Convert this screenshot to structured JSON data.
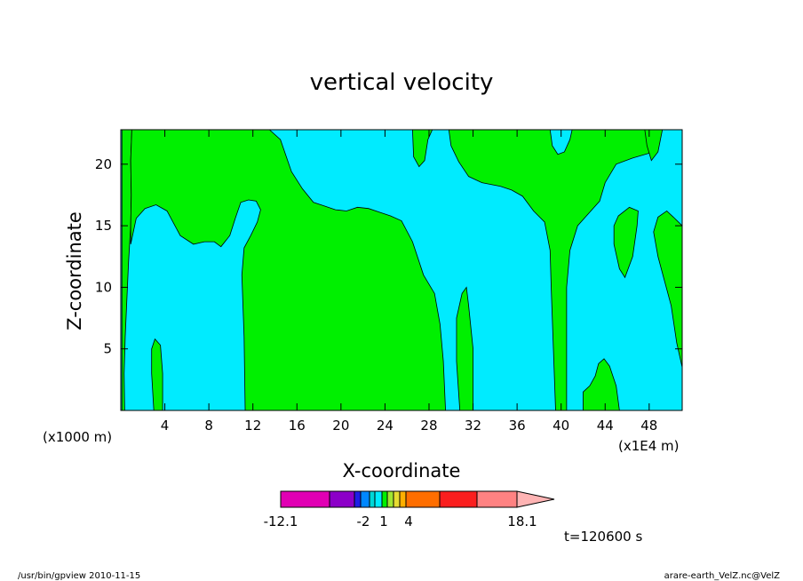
{
  "chart_data": {
    "type": "heatmap",
    "title": "vertical velocity",
    "xlabel": "X-coordinate",
    "ylabel": "Z-coordinate",
    "x_unit_left": "(x1000 m)",
    "x_unit_right": "(x1E4 m)",
    "xlim": [
      0,
      51
    ],
    "ylim": [
      0,
      22.8
    ],
    "xticks": [
      4,
      8,
      12,
      16,
      20,
      24,
      28,
      32,
      36,
      40,
      44,
      48
    ],
    "yticks": [
      5,
      10,
      15,
      20
    ],
    "background_color": "#00EBFF",
    "green_color": "#00F000",
    "regions": [
      {
        "name": "green-left-edge",
        "color": "#00F000",
        "points": [
          [
            0.1,
            0
          ],
          [
            0.1,
            22.8
          ],
          [
            1.0,
            22.8
          ],
          [
            0.9,
            20.3
          ],
          [
            0.95,
            17.5
          ],
          [
            0.9,
            15.0
          ],
          [
            0.7,
            12.0
          ],
          [
            0.55,
            9.0
          ],
          [
            0.4,
            6.0
          ],
          [
            0.3,
            3.0
          ],
          [
            0.35,
            0.0
          ]
        ]
      },
      {
        "name": "green-upper-left",
        "color": "#00F000",
        "points": [
          [
            1.0,
            22.8
          ],
          [
            13.5,
            22.8
          ],
          [
            14.5,
            22.0
          ],
          [
            15.5,
            19.4
          ],
          [
            16.5,
            18.0
          ],
          [
            17.5,
            16.9
          ],
          [
            18.5,
            16.6
          ],
          [
            19.5,
            16.3
          ],
          [
            20.5,
            16.2
          ],
          [
            21.5,
            16.5
          ],
          [
            22.5,
            16.4
          ],
          [
            23.5,
            16.1
          ],
          [
            24.5,
            15.8
          ],
          [
            25.5,
            15.4
          ],
          [
            26.5,
            13.7
          ],
          [
            27.5,
            11.0
          ],
          [
            28.5,
            9.5
          ],
          [
            29.0,
            7.0
          ],
          [
            29.3,
            4.0
          ],
          [
            29.5,
            0.0
          ],
          [
            11.3,
            0.0
          ],
          [
            11.2,
            6.0
          ],
          [
            11.0,
            11.0
          ],
          [
            11.2,
            13.2
          ],
          [
            11.8,
            14.2
          ],
          [
            12.4,
            15.3
          ],
          [
            12.7,
            16.3
          ],
          [
            12.3,
            17.0
          ],
          [
            11.6,
            17.1
          ],
          [
            10.9,
            16.9
          ],
          [
            10.4,
            15.6
          ],
          [
            9.9,
            14.2
          ],
          [
            9.1,
            13.3
          ],
          [
            8.5,
            13.7
          ],
          [
            7.6,
            13.7
          ],
          [
            6.6,
            13.5
          ],
          [
            5.4,
            14.2
          ],
          [
            4.2,
            16.2
          ],
          [
            3.2,
            16.7
          ],
          [
            2.2,
            16.4
          ],
          [
            1.4,
            15.6
          ],
          [
            0.9,
            13.5
          ],
          [
            0.9,
            15.0
          ],
          [
            0.95,
            17.5
          ],
          [
            0.9,
            20.3
          ]
        ]
      },
      {
        "name": "green-lower-left-finger",
        "color": "#00F000",
        "points": [
          [
            3.0,
            0.0
          ],
          [
            2.8,
            3.0
          ],
          [
            2.8,
            5.0
          ],
          [
            3.1,
            5.8
          ],
          [
            3.6,
            5.3
          ],
          [
            3.8,
            3.0
          ],
          [
            3.8,
            0.0
          ]
        ]
      },
      {
        "name": "green-middle-finger",
        "color": "#00F000",
        "points": [
          [
            30.8,
            0.0
          ],
          [
            30.5,
            4.0
          ],
          [
            30.5,
            7.5
          ],
          [
            31.0,
            9.5
          ],
          [
            31.4,
            10.0
          ],
          [
            31.6,
            8.5
          ],
          [
            32.0,
            5.0
          ],
          [
            32.0,
            0.0
          ]
        ]
      },
      {
        "name": "green-upper-mid",
        "color": "#00F000",
        "points": [
          [
            26.5,
            22.8
          ],
          [
            26.6,
            20.6
          ],
          [
            27.1,
            19.8
          ],
          [
            27.6,
            20.3
          ],
          [
            27.9,
            22.0
          ],
          [
            28.3,
            22.8
          ]
        ]
      },
      {
        "name": "green-upper-right",
        "color": "#00F000",
        "points": [
          [
            29.8,
            22.8
          ],
          [
            48.9,
            22.8
          ],
          [
            48.4,
            21.0
          ],
          [
            46.5,
            20.5
          ],
          [
            45.0,
            20.0
          ],
          [
            44.0,
            18.5
          ],
          [
            43.5,
            17.0
          ],
          [
            42.5,
            16.0
          ],
          [
            41.5,
            15.0
          ],
          [
            40.8,
            13.0
          ],
          [
            40.5,
            10.0
          ],
          [
            40.5,
            0.0
          ],
          [
            39.5,
            0.0
          ],
          [
            39.3,
            5.0
          ],
          [
            39.1,
            10.0
          ],
          [
            39.0,
            13.0
          ],
          [
            38.5,
            15.3
          ],
          [
            37.5,
            16.2
          ],
          [
            36.5,
            17.4
          ],
          [
            35.5,
            17.9
          ],
          [
            34.5,
            18.2
          ],
          [
            32.8,
            18.5
          ],
          [
            31.6,
            19.0
          ],
          [
            30.7,
            20.2
          ],
          [
            30.0,
            21.5
          ]
        ]
      },
      {
        "name": "blue-notch-right",
        "color": "#00EBFF",
        "points": [
          [
            39.0,
            22.8
          ],
          [
            39.2,
            21.5
          ],
          [
            39.7,
            20.8
          ],
          [
            40.3,
            21.0
          ],
          [
            40.8,
            22.0
          ],
          [
            41.0,
            22.8
          ]
        ]
      },
      {
        "name": "green-right-patch",
        "color": "#00F000",
        "points": [
          [
            44.8,
            15.0
          ],
          [
            45.2,
            15.8
          ],
          [
            46.2,
            16.5
          ],
          [
            47.0,
            16.2
          ],
          [
            46.9,
            15.0
          ],
          [
            46.5,
            12.5
          ],
          [
            45.8,
            10.8
          ],
          [
            45.3,
            11.5
          ],
          [
            44.8,
            13.5
          ]
        ]
      },
      {
        "name": "green-top-right-sliver",
        "color": "#00F000",
        "points": [
          [
            47.6,
            22.8
          ],
          [
            47.8,
            21.5
          ],
          [
            48.2,
            20.3
          ],
          [
            48.8,
            21.0
          ],
          [
            49.2,
            22.8
          ]
        ]
      },
      {
        "name": "green-right-edge",
        "color": "#00F000",
        "points": [
          [
            51.0,
            3.5
          ],
          [
            50.5,
            5.5
          ],
          [
            50.0,
            8.5
          ],
          [
            49.4,
            10.5
          ],
          [
            48.8,
            12.5
          ],
          [
            48.4,
            14.5
          ],
          [
            48.8,
            15.7
          ],
          [
            49.6,
            16.2
          ],
          [
            50.2,
            15.7
          ],
          [
            51.0,
            15.0
          ]
        ]
      },
      {
        "name": "green-lower-right",
        "color": "#00F000",
        "points": [
          [
            42.0,
            0.0
          ],
          [
            42.0,
            1.5
          ],
          [
            42.6,
            2.0
          ],
          [
            43.1,
            2.8
          ],
          [
            43.4,
            3.8
          ],
          [
            43.9,
            4.2
          ],
          [
            44.4,
            3.6
          ],
          [
            45.0,
            2.0
          ],
          [
            45.3,
            0.0
          ]
        ]
      }
    ],
    "colorbar": {
      "labels": [
        "-12.1",
        "-2",
        "1",
        "4",
        "18.1"
      ],
      "colors": [
        "#E100B4",
        "#8C00C8",
        "#1E1EE6",
        "#0087FF",
        "#00D7D7",
        "#00EBFF",
        "#00F000",
        "#A0E632",
        "#E6DC32",
        "#FFAF00",
        "#FF6E00",
        "#FA1E1E",
        "#FF8282",
        "#FFB4B4"
      ]
    },
    "time_label": "t=120600 s"
  },
  "footer": {
    "left": "/usr/bin/gpview  2010-11-15",
    "right": "arare-earth_VelZ.nc@VelZ"
  }
}
